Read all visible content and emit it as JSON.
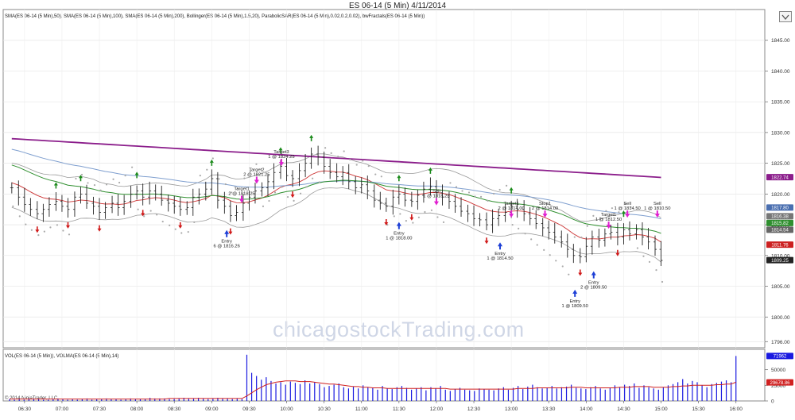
{
  "window": {
    "title": "ES 06-14 (5 Min)  4/11/2014"
  },
  "toolbar": {
    "collapse_icon": "chevron-down-icon"
  },
  "watermark": "chicagostockTrading.com",
  "copyright": "© 2014 NinjaTrader, LLC",
  "colors": {
    "sma50": "#2f8f2f",
    "sma100": "#7f9fcf",
    "sma200": "#8b1d8b",
    "bollinger": "#999999",
    "bollinger_mid": "#cc3333",
    "psar": "#aaaaaa",
    "buy_arrow": "#1d3fd6",
    "sell_arrow": "#e020d0",
    "fractal_up": "#1a8a1a",
    "fractal_down": "#d01818",
    "volume": "#1a1ae0",
    "volma": "#d02020"
  },
  "chart_data": [
    {
      "type": "line",
      "panel": "price",
      "indicators_label": "SMA(ES 06-14 (5 Min),50), SMA(ES 06-14 (5 Min),100), SMA(ES 06-14 (5 Min),200), Bollinger(ES 06-14 (5 Min),1.5,20), ParabolicSAR(ES 06-14 (5 Min),0.02,0.2,0.02), bwFractals(ES 06-14 (5 Min))",
      "ylim": [
        1795,
        1850
      ],
      "y_ticks": [
        1796,
        1800,
        1805,
        1810,
        1815,
        1820,
        1825,
        1830,
        1835,
        1840,
        1845
      ],
      "x_ticks": [
        "06:30",
        "07:00",
        "07:30",
        "08:00",
        "08:30",
        "09:00",
        "09:30",
        "10:00",
        "10:30",
        "11:00",
        "11:30",
        "12:00",
        "12:30",
        "13:00",
        "13:30",
        "14:00",
        "14:30",
        "15:00",
        "15:30",
        "16:00"
      ],
      "x_range_hours": [
        6.3,
        16.3
      ],
      "close": [
        [
          6.33,
          1821.0
        ],
        [
          6.42,
          1819.5
        ],
        [
          6.5,
          1818.3
        ],
        [
          6.58,
          1817.5
        ],
        [
          6.67,
          1816.8
        ],
        [
          6.75,
          1817.5
        ],
        [
          6.83,
          1818.3
        ],
        [
          6.92,
          1818.8
        ],
        [
          7.0,
          1818.0
        ],
        [
          7.08,
          1817.5
        ],
        [
          7.17,
          1819.5
        ],
        [
          7.25,
          1820.0
        ],
        [
          7.33,
          1818.5
        ],
        [
          7.42,
          1818.0
        ],
        [
          7.5,
          1817.0
        ],
        [
          7.58,
          1817.8
        ],
        [
          7.67,
          1818.5
        ],
        [
          7.75,
          1817.8
        ],
        [
          7.83,
          1818.8
        ],
        [
          7.92,
          1820.0
        ],
        [
          8.0,
          1820.5
        ],
        [
          8.08,
          1819.5
        ],
        [
          8.17,
          1820.5
        ],
        [
          8.25,
          1820.0
        ],
        [
          8.33,
          1819.0
        ],
        [
          8.42,
          1818.5
        ],
        [
          8.5,
          1818.0
        ],
        [
          8.58,
          1817.5
        ],
        [
          8.67,
          1817.8
        ],
        [
          8.75,
          1819.5
        ],
        [
          8.83,
          1820.0
        ],
        [
          8.92,
          1820.8
        ],
        [
          9.0,
          1822.5
        ],
        [
          9.08,
          1819.0
        ],
        [
          9.17,
          1818.0
        ],
        [
          9.25,
          1816.5
        ],
        [
          9.33,
          1817.0
        ],
        [
          9.42,
          1818.5
        ],
        [
          9.5,
          1819.5
        ],
        [
          9.58,
          1820.5
        ],
        [
          9.67,
          1821.0
        ],
        [
          9.75,
          1822.0
        ],
        [
          9.83,
          1823.5
        ],
        [
          9.92,
          1824.5
        ],
        [
          10.0,
          1823.0
        ],
        [
          10.08,
          1822.5
        ],
        [
          10.17,
          1823.8
        ],
        [
          10.25,
          1825.0
        ],
        [
          10.33,
          1826.5
        ],
        [
          10.42,
          1826.0
        ],
        [
          10.5,
          1824.5
        ],
        [
          10.58,
          1823.5
        ],
        [
          10.67,
          1822.8
        ],
        [
          10.75,
          1823.5
        ],
        [
          10.83,
          1822.0
        ],
        [
          10.92,
          1821.0
        ],
        [
          11.0,
          1821.5
        ],
        [
          11.08,
          1820.5
        ],
        [
          11.17,
          1819.0
        ],
        [
          11.25,
          1818.5
        ],
        [
          11.33,
          1818.0
        ],
        [
          11.42,
          1819.5
        ],
        [
          11.5,
          1820.0
        ],
        [
          11.58,
          1819.0
        ],
        [
          11.67,
          1818.8
        ],
        [
          11.75,
          1819.8
        ],
        [
          11.83,
          1820.8
        ],
        [
          11.92,
          1821.2
        ],
        [
          12.0,
          1820.2
        ],
        [
          12.08,
          1819.5
        ],
        [
          12.17,
          1818.8
        ],
        [
          12.25,
          1818.0
        ],
        [
          12.33,
          1817.2
        ],
        [
          12.42,
          1816.8
        ],
        [
          12.5,
          1816.0
        ],
        [
          12.58,
          1815.8
        ],
        [
          12.67,
          1815.0
        ],
        [
          12.75,
          1816.0
        ],
        [
          12.83,
          1816.5
        ],
        [
          12.92,
          1817.0
        ],
        [
          13.0,
          1818.0
        ],
        [
          13.08,
          1817.5
        ],
        [
          13.17,
          1816.8
        ],
        [
          13.25,
          1816.0
        ],
        [
          13.33,
          1815.2
        ],
        [
          13.42,
          1814.5
        ],
        [
          13.5,
          1813.8
        ],
        [
          13.58,
          1813.0
        ],
        [
          13.67,
          1812.2
        ],
        [
          13.75,
          1811.0
        ],
        [
          13.83,
          1810.0
        ],
        [
          13.92,
          1809.8
        ],
        [
          14.0,
          1811.5
        ],
        [
          14.08,
          1813.0
        ],
        [
          14.17,
          1812.5
        ],
        [
          14.25,
          1813.5
        ],
        [
          14.33,
          1813.8
        ],
        [
          14.42,
          1813.0
        ],
        [
          14.5,
          1814.2
        ],
        [
          14.58,
          1813.5
        ],
        [
          14.67,
          1814.2
        ],
        [
          14.75,
          1813.0
        ],
        [
          14.83,
          1812.2
        ],
        [
          14.92,
          1811.0
        ],
        [
          15.0,
          1809.2
        ]
      ],
      "price_labels": [
        {
          "label": "1822.74",
          "y": 1822.74,
          "color": "#8b1d8b"
        },
        {
          "label": "1817.80",
          "y": 1817.8,
          "color": "#4a6fb0"
        },
        {
          "label": "1816.38",
          "y": 1816.38,
          "color": "#777777"
        },
        {
          "label": "1815.82",
          "y": 1815.82,
          "color": "#2f8f2f"
        },
        {
          "label": "1814.54",
          "y": 1814.54,
          "color": "#666666"
        },
        {
          "label": "1811.76",
          "y": 1811.76,
          "color": "#cc2020"
        },
        {
          "label": "1809.25",
          "y": 1809.25,
          "color": "#222222"
        }
      ],
      "annotations": [
        {
          "text": "Target3",
          "sub": "1 @ 1824.25",
          "x": 9.93,
          "y": 1825.2,
          "dir": "sell"
        },
        {
          "text": "Target2",
          "sub": "2 @ 1821.25",
          "x": 9.6,
          "y": 1822.3,
          "dir": "sell"
        },
        {
          "text": "Target1",
          "sub": "2 @ 1818.25",
          "x": 9.4,
          "y": 1819.2,
          "dir": "sell"
        },
        {
          "text": "Entry",
          "sub": "6 @ 1816.26",
          "x": 9.2,
          "y": 1813.5,
          "dir": "buy"
        },
        {
          "text": "Sell",
          "sub": "1 @ 1818.25",
          "x": 12.0,
          "y": 1818.8,
          "dir": "sell"
        },
        {
          "text": "Entry",
          "sub": "1 @ 1818.00",
          "x": 11.5,
          "y": 1814.8,
          "dir": "buy"
        },
        {
          "text": "Entry",
          "sub": "1 @ 1814.50",
          "x": 12.85,
          "y": 1811.5,
          "dir": "buy"
        },
        {
          "text": "Target1",
          "sub": "2 @ 1814.00",
          "x": 13.0,
          "y": 1816.8,
          "dir": "sell"
        },
        {
          "text": "Stop1",
          "sub": "2 @ 1814.00",
          "x": 13.45,
          "y": 1816.8,
          "dir": "sell"
        },
        {
          "text": "Target1",
          "sub": "1 @ 1812.50",
          "x": 14.3,
          "y": 1815.0,
          "dir": "sell"
        },
        {
          "text": "Sell",
          "sub": "1 @ 1814.50",
          "x": 14.55,
          "y": 1816.8,
          "dir": "sell"
        },
        {
          "text": "Sell",
          "sub": "1 @ 1810.50",
          "x": 14.95,
          "y": 1816.8,
          "dir": "sell"
        },
        {
          "text": "Entry",
          "sub": "2 @ 1809.50",
          "x": 14.1,
          "y": 1806.8,
          "dir": "buy"
        },
        {
          "text": "Entry",
          "sub": "1 @ 1809.50",
          "x": 13.85,
          "y": 1803.8,
          "dir": "buy"
        }
      ]
    },
    {
      "type": "bar",
      "panel": "volume",
      "indicators_label": "VOL(ES 06-14 (5 Min)), VOLMA(ES 06-14 (5 Min),14)",
      "ylim": [
        0,
        75000
      ],
      "y_ticks": [
        0,
        25000,
        50000
      ],
      "last_labels": [
        {
          "label": "71962",
          "color": "#1a1ae0"
        },
        {
          "label": "29678.86",
          "color": "#d02020"
        }
      ],
      "volumes_k": [
        3,
        2,
        3,
        2,
        4,
        3,
        3,
        2,
        2,
        3,
        4,
        3,
        2,
        3,
        2,
        3,
        4,
        2,
        3,
        3,
        4,
        3,
        3,
        2,
        3,
        4,
        3,
        3,
        3,
        5,
        4,
        4,
        4,
        3,
        3,
        4,
        5,
        4,
        4,
        5,
        4,
        3,
        4,
        5,
        4,
        4,
        3,
        4,
        3,
        74,
        45,
        40,
        34,
        38,
        32,
        28,
        30,
        26,
        31,
        29,
        27,
        33,
        28,
        30,
        27,
        22,
        24,
        26,
        28,
        22,
        20,
        23,
        20,
        25,
        22,
        21,
        18,
        24,
        20,
        19,
        22,
        24,
        21,
        18,
        20,
        22,
        17,
        22,
        20,
        24,
        18,
        16,
        19,
        21,
        18,
        17,
        16,
        20,
        19,
        18,
        17,
        20,
        22,
        18,
        21,
        24,
        19,
        23,
        26,
        22,
        20,
        21,
        24,
        20,
        22,
        23,
        26,
        21,
        20,
        19,
        22,
        24,
        20,
        18,
        21,
        25,
        22,
        26,
        24,
        28,
        21,
        25,
        22,
        20,
        18,
        22,
        25,
        27,
        30,
        35,
        28,
        32,
        30,
        25,
        22,
        27,
        29,
        31,
        33,
        30,
        72
      ],
      "volma_k": [
        3,
        3,
        3,
        3,
        3,
        3,
        3,
        3,
        3,
        3,
        3,
        3,
        3,
        3,
        3,
        3,
        3,
        3,
        3,
        3,
        3,
        3,
        3,
        3,
        3,
        3,
        3,
        3,
        3,
        3,
        3,
        3,
        3,
        4,
        4,
        4,
        4,
        4,
        4,
        4,
        4,
        4,
        4,
        4,
        4,
        4,
        4,
        4,
        4,
        8,
        13,
        18,
        22,
        26,
        28,
        30,
        31,
        32,
        32,
        32,
        31,
        31,
        31,
        30,
        29,
        28,
        27,
        27,
        26,
        25,
        24,
        23,
        23,
        22,
        22,
        21,
        21,
        21,
        20,
        20,
        20,
        20,
        20,
        20,
        20,
        20,
        20,
        20,
        20,
        20,
        20,
        19,
        19,
        19,
        19,
        19,
        19,
        19,
        19,
        19,
        19,
        19,
        19,
        19,
        19,
        20,
        20,
        20,
        20,
        21,
        21,
        21,
        21,
        21,
        21,
        21,
        22,
        22,
        22,
        21,
        21,
        21,
        21,
        21,
        21,
        21,
        22,
        22,
        22,
        23,
        23,
        23,
        23,
        22,
        22,
        22,
        22,
        23,
        23,
        24,
        24,
        25,
        25,
        25,
        25,
        25,
        26,
        26,
        27,
        27,
        30
      ]
    }
  ]
}
